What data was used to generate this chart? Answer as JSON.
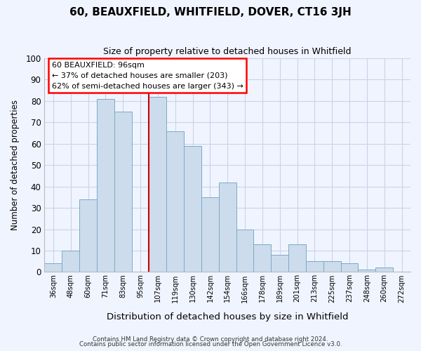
{
  "title": "60, BEAUXFIELD, WHITFIELD, DOVER, CT16 3JH",
  "subtitle": "Size of property relative to detached houses in Whitfield",
  "xlabel": "Distribution of detached houses by size in Whitfield",
  "ylabel": "Number of detached properties",
  "categories": [
    "36sqm",
    "48sqm",
    "60sqm",
    "71sqm",
    "83sqm",
    "95sqm",
    "107sqm",
    "119sqm",
    "130sqm",
    "142sqm",
    "154sqm",
    "166sqm",
    "178sqm",
    "189sqm",
    "201sqm",
    "213sqm",
    "225sqm",
    "237sqm",
    "248sqm",
    "260sqm",
    "272sqm"
  ],
  "values": [
    4,
    10,
    34,
    81,
    75,
    0,
    82,
    66,
    59,
    35,
    42,
    20,
    13,
    8,
    13,
    5,
    5,
    4,
    1,
    2,
    0
  ],
  "bar_color": "#ccdcec",
  "bar_edge_color": "#7aaac8",
  "vline_index": 6,
  "vline_color": "#cc0000",
  "annotation_title": "60 BEAUXFIELD: 96sqm",
  "annotation_line1": "← 37% of detached houses are smaller (203)",
  "annotation_line2": "62% of semi-detached houses are larger (343) →",
  "ylim": [
    0,
    100
  ],
  "yticks": [
    0,
    10,
    20,
    30,
    40,
    50,
    60,
    70,
    80,
    90,
    100
  ],
  "footer1": "Contains HM Land Registry data © Crown copyright and database right 2024.",
  "footer2": "Contains public sector information licensed under the Open Government Licence v3.0.",
  "bg_color": "#f0f4ff",
  "grid_color": "#c8d4e8"
}
